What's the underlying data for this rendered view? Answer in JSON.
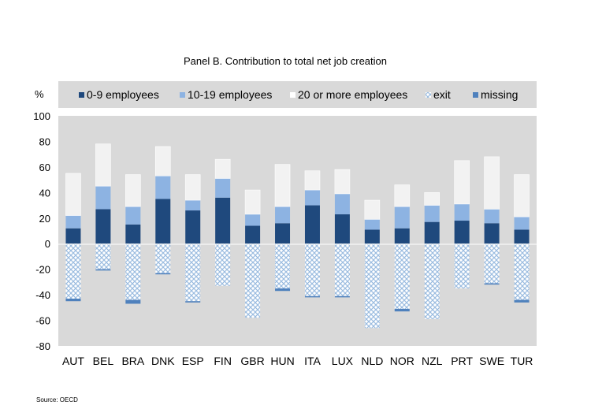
{
  "chart_data": {
    "type": "bar",
    "title": "Panel B. Contribution to total net job creation",
    "ylabel": "%",
    "ylim": [
      -80,
      100
    ],
    "yticks": [
      100,
      80,
      60,
      40,
      20,
      0,
      -20,
      -40,
      -60,
      -80
    ],
    "grid": false,
    "legend_position": "top",
    "categories": [
      "AUT",
      "BEL",
      "BRA",
      "DNK",
      "ESP",
      "FIN",
      "GBR",
      "HUN",
      "ITA",
      "LUX",
      "NLD",
      "NOR",
      "NZL",
      "PRT",
      "SWE",
      "TUR"
    ],
    "series": [
      {
        "name": "0-9 employees",
        "color": "#1f497d",
        "pattern": "solid",
        "values": [
          12,
          27,
          15,
          35,
          26,
          36,
          14,
          16,
          30,
          23,
          11,
          12,
          17,
          18,
          16,
          11
        ]
      },
      {
        "name": "10-19 employees",
        "color": "#8db3e2",
        "pattern": "solid",
        "values": [
          10,
          18,
          14,
          18,
          8,
          15,
          9,
          13,
          12,
          16,
          8,
          17,
          13,
          13,
          11,
          10
        ]
      },
      {
        "name": "20 or more employees",
        "color": "#f2f2f2",
        "pattern": "solid",
        "values": [
          33,
          33,
          25,
          23,
          20,
          15,
          19,
          33,
          15,
          19,
          15,
          17,
          10,
          34,
          41,
          33
        ]
      },
      {
        "name": "exit",
        "color": "#c6d9f1",
        "pattern": "crosshatch",
        "values": [
          -43,
          -20,
          -44,
          -23,
          -45,
          -33,
          -58,
          -35,
          -41,
          -41,
          -66,
          -51,
          -59,
          -35,
          -31,
          -44
        ]
      },
      {
        "name": "missing",
        "color": "#4f81bd",
        "pattern": "solid",
        "values": [
          -2,
          -1,
          -3,
          -1,
          -1,
          0,
          0,
          -2,
          -1,
          -1,
          0,
          -2,
          0,
          0,
          -1,
          -2
        ]
      }
    ],
    "source": "Source: OECD",
    "colors": {
      "plot_background": "#d9d9d9",
      "legend_background": "#d9d9d9"
    }
  }
}
